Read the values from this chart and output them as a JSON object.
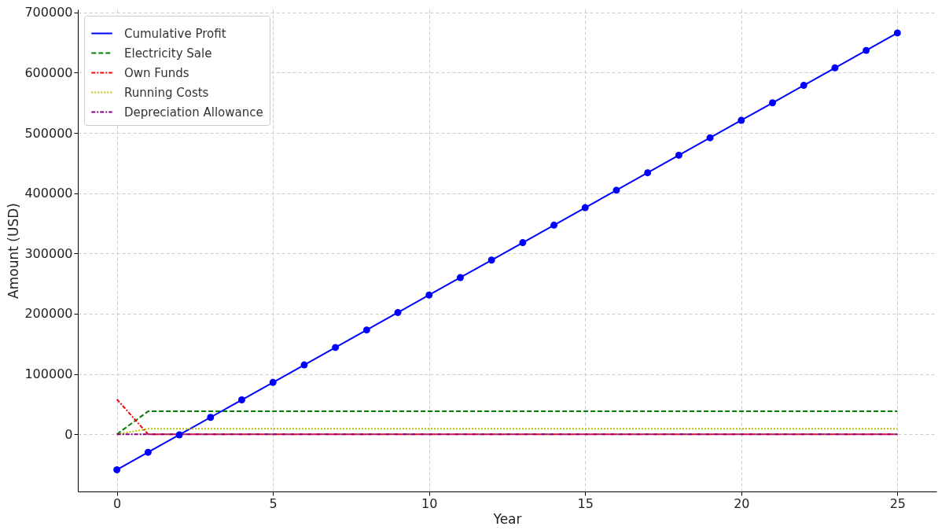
{
  "chart_data": {
    "type": "line",
    "xlabel": "Year",
    "ylabel": "Amount (USD)",
    "x": [
      0,
      1,
      2,
      3,
      4,
      5,
      6,
      7,
      8,
      9,
      10,
      11,
      12,
      13,
      14,
      15,
      16,
      17,
      18,
      19,
      20,
      21,
      22,
      23,
      24,
      25
    ],
    "series": [
      {
        "name": "Cumulative Profit",
        "color": "#0000ff",
        "marker": "circle",
        "line_style": "solid",
        "values": [
          -59000,
          -30000,
          -1000,
          28000,
          57000,
          86000,
          115000,
          144000,
          173000,
          202000,
          231000,
          260000,
          289000,
          318000,
          347000,
          376000,
          405000,
          434000,
          463000,
          492000,
          521000,
          550000,
          579000,
          608000,
          637000,
          666000
        ]
      },
      {
        "name": "Electricity Sale",
        "color": "#008000",
        "line_style": "dashed",
        "values": [
          0,
          38000,
          38000,
          38000,
          38000,
          38000,
          38000,
          38000,
          38000,
          38000,
          38000,
          38000,
          38000,
          38000,
          38000,
          38000,
          38000,
          38000,
          38000,
          38000,
          38000,
          38000,
          38000,
          38000,
          38000,
          38000
        ]
      },
      {
        "name": "Own Funds",
        "color": "#ff0000",
        "line_style": "dashdot",
        "values": [
          58000,
          0,
          0,
          0,
          0,
          0,
          0,
          0,
          0,
          0,
          0,
          0,
          0,
          0,
          0,
          0,
          0,
          0,
          0,
          0,
          0,
          0,
          0,
          0,
          0,
          0
        ]
      },
      {
        "name": "Running Costs",
        "color": "#bfbf00",
        "line_style": "dotted",
        "values": [
          0,
          9000,
          9000,
          9000,
          9000,
          9000,
          9000,
          9000,
          9000,
          9000,
          9000,
          9000,
          9000,
          9000,
          9000,
          9000,
          9000,
          9000,
          9000,
          9000,
          9000,
          9000,
          9000,
          9000,
          9000,
          9000
        ]
      },
      {
        "name": "Depreciation Allowance",
        "color": "#800080",
        "line_style": "dashdot",
        "values": [
          0,
          0,
          0,
          0,
          0,
          0,
          0,
          0,
          0,
          0,
          0,
          0,
          0,
          0,
          0,
          0,
          0,
          0,
          0,
          0,
          0,
          0,
          0,
          0,
          0,
          0
        ]
      }
    ],
    "xlim": [
      -1.25,
      26.25
    ],
    "xticks": [
      0,
      5,
      10,
      15,
      20,
      25
    ],
    "ylim": [
      -95000,
      705000
    ],
    "yticks": [
      0,
      100000,
      200000,
      300000,
      400000,
      500000,
      600000,
      700000
    ],
    "grid": true,
    "legend": "top left"
  }
}
